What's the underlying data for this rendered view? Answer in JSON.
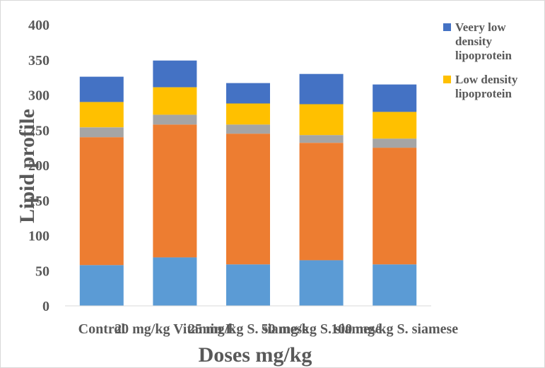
{
  "chart_data": {
    "type": "bar",
    "stacked": true,
    "categories": [
      "Control",
      "20 mg/kg Vitamin E",
      "25 mg/kg S. siamese",
      "50 mg/kg S. siamese",
      "100 mg/kg S. siamese"
    ],
    "series": [
      {
        "color": "#5b9bd5",
        "values": [
          58,
          69,
          59,
          65,
          59
        ]
      },
      {
        "color": "#ed7d31",
        "values": [
          182,
          189,
          186,
          167,
          166
        ]
      },
      {
        "color": "#a5a5a5",
        "values": [
          14,
          14,
          13,
          11,
          13
        ]
      },
      {
        "name": "Low density lipoprotein",
        "color": "#ffc000",
        "values": [
          36,
          39,
          30,
          44,
          38
        ]
      },
      {
        "name": "Veery low density lipoprotein",
        "color": "#4472c4",
        "values": [
          36,
          38,
          29,
          43,
          39
        ]
      }
    ],
    "legend": {
      "placement": "top-right",
      "entries": [
        {
          "lines": [
            "Veery low",
            "density",
            "lipoprotein"
          ],
          "color": "#4472c4"
        },
        {
          "lines": [
            "Low density",
            "lipoprotein"
          ],
          "color": "#ffc000"
        }
      ]
    },
    "yticks": [
      "0",
      "50",
      "100",
      "150",
      "200",
      "250",
      "300",
      "350",
      "400"
    ],
    "ylim": [
      0,
      400
    ],
    "xlabel": "Doses mg/kg",
    "ylabel": "Lipid profile",
    "grid": false
  }
}
